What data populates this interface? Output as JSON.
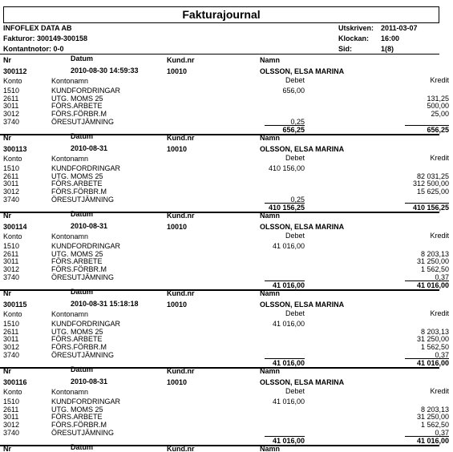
{
  "header": {
    "title": "Fakturajournal",
    "company": "INFOFLEX DATA AB",
    "fakturor": "Fakturor: 300149-300158",
    "kontantnotor": "Kontantnotor: 0-0",
    "meta": [
      {
        "label": "Utskriven:",
        "value": "2011-03-07"
      },
      {
        "label": "Klockan:",
        "value": "16:00"
      },
      {
        "label": "Sid:",
        "value": "1(8)"
      }
    ]
  },
  "columns": {
    "nr": "Nr",
    "datum": "Datum",
    "kundnr": "Kund.nr",
    "namn": "Namn",
    "konto": "Konto",
    "kontonamn": "Kontonamn",
    "debet": "Debet",
    "kredit": "Kredit"
  },
  "invoices": [
    {
      "nr": "300112",
      "datum": "2010-08-30 14:59:33",
      "kundnr": "10010",
      "namn": "OLSSON, ELSA MARINA",
      "rows": [
        {
          "konto": "1510",
          "namn": "KUNDFORDRINGAR",
          "debet": "656,00"
        },
        {
          "konto": "2611",
          "namn": "UTG. MOMS 25",
          "kredit": "131,25"
        },
        {
          "konto": "3011",
          "namn": "FÖRS.ARBETE",
          "kredit": "500,00"
        },
        {
          "konto": "3012",
          "namn": "FÖRS.FÖRBR.M",
          "kredit": "25,00"
        },
        {
          "konto": "3740",
          "namn": "ÖRESUTJÄMNING",
          "debet": "0,25"
        }
      ],
      "total": {
        "debet": "656,25",
        "kredit": "656,25"
      }
    },
    {
      "nr": "300113",
      "datum": "2010-08-31",
      "kundnr": "10010",
      "namn": "OLSSON, ELSA MARINA",
      "rows": [
        {
          "konto": "1510",
          "namn": "KUNDFORDRINGAR",
          "debet": "410 156,00"
        },
        {
          "konto": "2611",
          "namn": "UTG. MOMS 25",
          "kredit": "82 031,25"
        },
        {
          "konto": "3011",
          "namn": "FÖRS.ARBETE",
          "kredit": "312 500,00"
        },
        {
          "konto": "3012",
          "namn": "FÖRS.FÖRBR.M",
          "kredit": "15 625,00"
        },
        {
          "konto": "3740",
          "namn": "ÖRESUTJÄMNING",
          "debet": "0,25"
        }
      ],
      "total": {
        "debet": "410 156,25",
        "kredit": "410 156,25"
      }
    },
    {
      "nr": "300114",
      "datum": "2010-08-31",
      "kundnr": "10010",
      "namn": "OLSSON, ELSA MARINA",
      "rows": [
        {
          "konto": "1510",
          "namn": "KUNDFORDRINGAR",
          "debet": "41 016,00"
        },
        {
          "konto": "2611",
          "namn": "UTG. MOMS 25",
          "kredit": "8 203,13"
        },
        {
          "konto": "3011",
          "namn": "FÖRS.ARBETE",
          "kredit": "31 250,00"
        },
        {
          "konto": "3012",
          "namn": "FÖRS.FÖRBR.M",
          "kredit": "1 562,50"
        },
        {
          "konto": "3740",
          "namn": "ÖRESUTJÄMNING",
          "kredit": "0,37"
        }
      ],
      "total": {
        "debet": "41 016,00",
        "kredit": "41 016,00"
      }
    },
    {
      "nr": "300115",
      "datum": "2010-08-31 15:18:18",
      "kundnr": "10010",
      "namn": "OLSSON, ELSA MARINA",
      "rows": [
        {
          "konto": "1510",
          "namn": "KUNDFORDRINGAR",
          "debet": "41 016,00"
        },
        {
          "konto": "2611",
          "namn": "UTG. MOMS 25",
          "kredit": "8 203,13"
        },
        {
          "konto": "3011",
          "namn": "FÖRS.ARBETE",
          "kredit": "31 250,00"
        },
        {
          "konto": "3012",
          "namn": "FÖRS.FÖRBR.M",
          "kredit": "1 562,50"
        },
        {
          "konto": "3740",
          "namn": "ÖRESUTJÄMNING",
          "kredit": "0,37"
        }
      ],
      "total": {
        "debet": "41 016,00",
        "kredit": "41 016,00"
      }
    },
    {
      "nr": "300116",
      "datum": "2010-08-31",
      "kundnr": "10010",
      "namn": "OLSSON, ELSA MARINA",
      "rows": [
        {
          "konto": "1510",
          "namn": "KUNDFORDRINGAR",
          "debet": "41 016,00"
        },
        {
          "konto": "2611",
          "namn": "UTG. MOMS 25",
          "kredit": "8 203,13"
        },
        {
          "konto": "3011",
          "namn": "FÖRS.ARBETE",
          "kredit": "31 250,00"
        },
        {
          "konto": "3012",
          "namn": "FÖRS.FÖRBR.M",
          "kredit": "1 562,50"
        },
        {
          "konto": "3740",
          "namn": "ÖRESUTJÄMNING",
          "kredit": "0,37"
        }
      ],
      "total": {
        "debet": "41 016,00",
        "kredit": "41 016,00"
      }
    }
  ]
}
